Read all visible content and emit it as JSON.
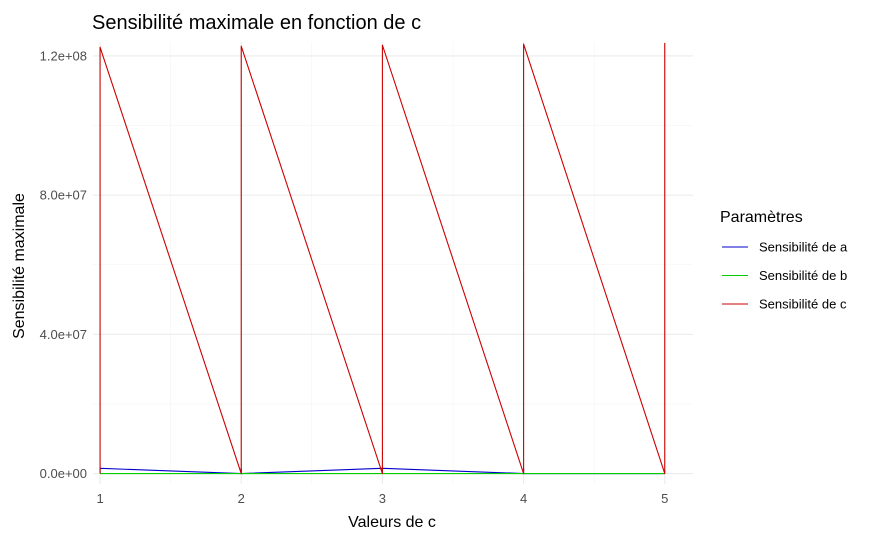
{
  "chart_data": {
    "type": "line",
    "title": "Sensibilité maximale en fonction de c",
    "xlabel": "Valeurs de c",
    "ylabel": "Sensibilité maximale",
    "xlim": [
      0.95,
      5.2
    ],
    "ylim": [
      -3000000,
      124000000
    ],
    "x_ticks": [
      1,
      2,
      3,
      4,
      5
    ],
    "x_tick_labels": [
      "1",
      "2",
      "3",
      "4",
      "5"
    ],
    "y_ticks": [
      0,
      40000000,
      80000000,
      120000000
    ],
    "y_tick_labels": [
      "0.0e+00",
      "4.0e+07",
      "8.0e+07",
      "1.2e+08"
    ],
    "grid": true,
    "legend": {
      "title": "Paramètres",
      "position": "right",
      "entries": [
        "Sensibilité de a",
        "Sensibilité de b",
        "Sensibilité de c"
      ]
    },
    "series": [
      {
        "name": "Sensibilité de a",
        "color": "#0000cd",
        "x": [
          1,
          1,
          2,
          2,
          2,
          3,
          3,
          3,
          4,
          4,
          4,
          5,
          5
        ],
        "y": [
          0,
          1500000,
          0,
          1500000,
          0,
          1500000,
          0,
          1500000,
          0,
          1500000,
          0,
          0,
          0
        ]
      },
      {
        "name": "Sensibilité de b",
        "color": "#00cd00",
        "x": [
          1,
          5
        ],
        "y": [
          0,
          0
        ]
      },
      {
        "name": "Sensibilité de c",
        "color": "#cd0000",
        "x": [
          1,
          1,
          2,
          2,
          3,
          3,
          4,
          4,
          5,
          5
        ],
        "y": [
          0,
          122500000,
          0,
          122800000,
          0,
          123100000,
          0,
          123400000,
          0,
          123700000
        ]
      }
    ]
  }
}
